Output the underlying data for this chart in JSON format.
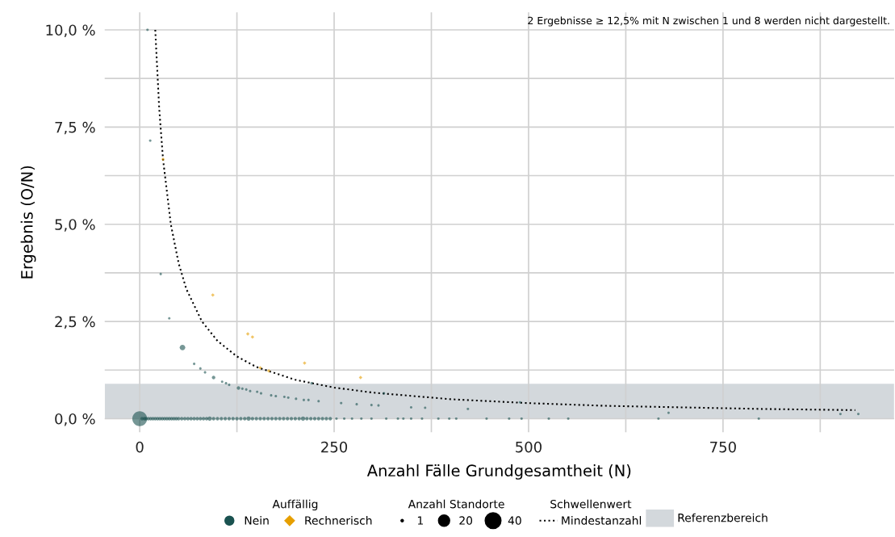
{
  "chart_data": {
    "type": "scatter",
    "xlabel": "Anzahl Fälle Grundgesamtheit (N)",
    "ylabel": "Ergebnis (O/N)",
    "legend_title": "Auffällig",
    "annotations": [
      "2 Ergebnisse ≥ 12,5% mit N zwischen 1 und 8 werden nicht dargestellt.",
      "Anzahl Standorte",
      "Schwellenwert"
    ],
    "xlim": [
      -45,
      970
    ],
    "ylim": [
      -0.35,
      10.45
    ],
    "xticks": [
      0,
      {
        "value": 125,
        "label": null
      },
      250,
      {
        "value": 375,
        "label": null
      },
      500,
      {
        "value": 625,
        "label": null
      },
      750,
      {
        "value": 875,
        "label": null
      }
    ],
    "yticks": [
      {
        "value": 0,
        "label": "0,0 %"
      },
      {
        "value": 1.25,
        "label": null
      },
      {
        "value": 2.5,
        "label": "2,5 %"
      },
      {
        "value": 3.75,
        "label": null
      },
      {
        "value": 5,
        "label": "5,0 %"
      },
      {
        "value": 6.25,
        "label": null
      },
      {
        "value": 7.5,
        "label": "7,5 %"
      },
      {
        "value": 8.75,
        "label": null
      },
      {
        "value": 10,
        "label": "10,0 %"
      }
    ],
    "grid": true,
    "legend": "bottom",
    "size_legend": [
      1,
      20,
      40
    ],
    "bands": [
      {
        "axis": "y",
        "from": 0,
        "to": 0.9,
        "label": "Referenzbereich",
        "color": "#d3d8dc"
      }
    ],
    "series": [
      {
        "name": "Nein",
        "marker": "circle",
        "color": "#1a5250",
        "x": [
          10,
          13.5,
          27,
          38,
          55,
          70,
          78,
          84,
          95,
          106,
          111,
          115,
          127,
          132,
          137,
          142,
          151,
          156,
          169,
          175,
          186,
          191,
          201,
          211,
          217,
          221,
          230,
          259,
          279,
          298,
          307,
          314,
          349,
          367,
          422,
          489,
          680,
          901,
          924,
          0,
          3,
          6,
          8,
          11,
          14,
          17,
          20,
          23,
          26,
          29,
          32,
          35,
          38,
          41,
          44,
          47,
          50,
          54,
          58,
          62,
          66,
          70,
          74,
          78,
          82,
          86,
          90,
          95,
          100,
          105,
          110,
          115,
          120,
          125,
          130,
          135,
          140,
          145,
          150,
          155,
          160,
          165,
          170,
          175,
          180,
          185,
          190,
          195,
          200,
          205,
          210,
          215,
          220,
          225,
          230,
          235,
          240,
          245,
          253,
          263,
          273,
          285,
          298,
          317,
          332,
          339,
          349,
          363,
          384,
          398,
          407,
          446,
          475,
          491,
          526,
          551,
          667,
          796
        ],
        "values": [
          10.0,
          7.15,
          3.72,
          2.58,
          1.83,
          1.41,
          1.29,
          1.19,
          1.06,
          0.95,
          0.91,
          0.87,
          0.79,
          0.77,
          0.75,
          0.71,
          0.69,
          0.65,
          0.6,
          0.58,
          0.56,
          0.54,
          0.51,
          0.48,
          0.48,
          0.91,
          0.45,
          0.4,
          0.37,
          0.35,
          0.34,
          0.65,
          0.29,
          0.28,
          0.25,
          0.42,
          0.15,
          0.12,
          0.12,
          0,
          0,
          0,
          0,
          0,
          0,
          0,
          0,
          0,
          0,
          0,
          0,
          0,
          0,
          0,
          0,
          0,
          0,
          0,
          0,
          0,
          0,
          0,
          0,
          0,
          0,
          0,
          0,
          0,
          0,
          0,
          0,
          0,
          0,
          0,
          0,
          0,
          0,
          0,
          0,
          0,
          0,
          0,
          0,
          0,
          0,
          0,
          0,
          0,
          0,
          0,
          0,
          0,
          0,
          0,
          0,
          0,
          0,
          0,
          0,
          0,
          0,
          0,
          0,
          0,
          0,
          0,
          0,
          0,
          0,
          0,
          0,
          0,
          0,
          0,
          0,
          0,
          0,
          0
        ],
        "sizes": [
          1,
          1,
          1,
          1,
          5,
          1,
          1,
          1,
          2,
          1,
          1,
          1,
          2,
          1,
          1,
          1,
          1,
          1,
          1,
          1,
          1,
          1,
          1,
          1,
          1,
          1,
          1,
          1,
          1,
          1,
          1,
          1,
          1,
          1,
          1,
          1,
          1,
          1,
          1,
          35,
          2,
          2,
          2,
          2,
          2,
          2,
          2,
          2,
          2,
          2,
          2,
          2,
          2,
          2,
          2,
          2,
          2,
          2,
          2,
          2,
          2,
          2,
          2,
          2,
          2,
          2,
          3,
          2,
          2,
          2,
          2,
          2,
          2,
          2,
          2,
          2,
          3,
          2,
          2,
          2,
          2,
          2,
          2,
          2,
          2,
          2,
          2,
          2,
          2,
          2,
          3,
          2,
          2,
          2,
          2,
          2,
          2,
          2,
          1,
          1,
          1,
          1,
          1,
          1,
          1,
          1,
          1,
          1,
          1,
          1,
          1,
          1,
          1,
          1,
          1,
          1,
          1,
          1
        ]
      },
      {
        "name": "Rechnerisch",
        "marker": "diamond",
        "color": "#e69f00",
        "x": [
          30,
          94,
          139,
          145,
          155,
          166,
          212,
          284
        ],
        "values": [
          6.67,
          3.18,
          2.18,
          2.1,
          1.31,
          1.23,
          1.43,
          1.06
        ],
        "sizes": [
          1,
          1,
          1,
          1,
          1,
          1,
          1,
          1
        ]
      },
      {
        "name": "Mindestanzahl",
        "type": "line",
        "line_style": "dotted",
        "marker": "none",
        "color": "#000000",
        "x": [
          20,
          25,
          30,
          40,
          50,
          60,
          80,
          100,
          125,
          150,
          200,
          250,
          300,
          400,
          500,
          600,
          700,
          800,
          920
        ],
        "values": [
          10,
          8,
          6.67,
          5,
          4,
          3.33,
          2.5,
          2,
          1.6,
          1.33,
          1,
          0.8,
          0.67,
          0.5,
          0.4,
          0.33,
          0.29,
          0.25,
          0.22
        ]
      }
    ]
  }
}
